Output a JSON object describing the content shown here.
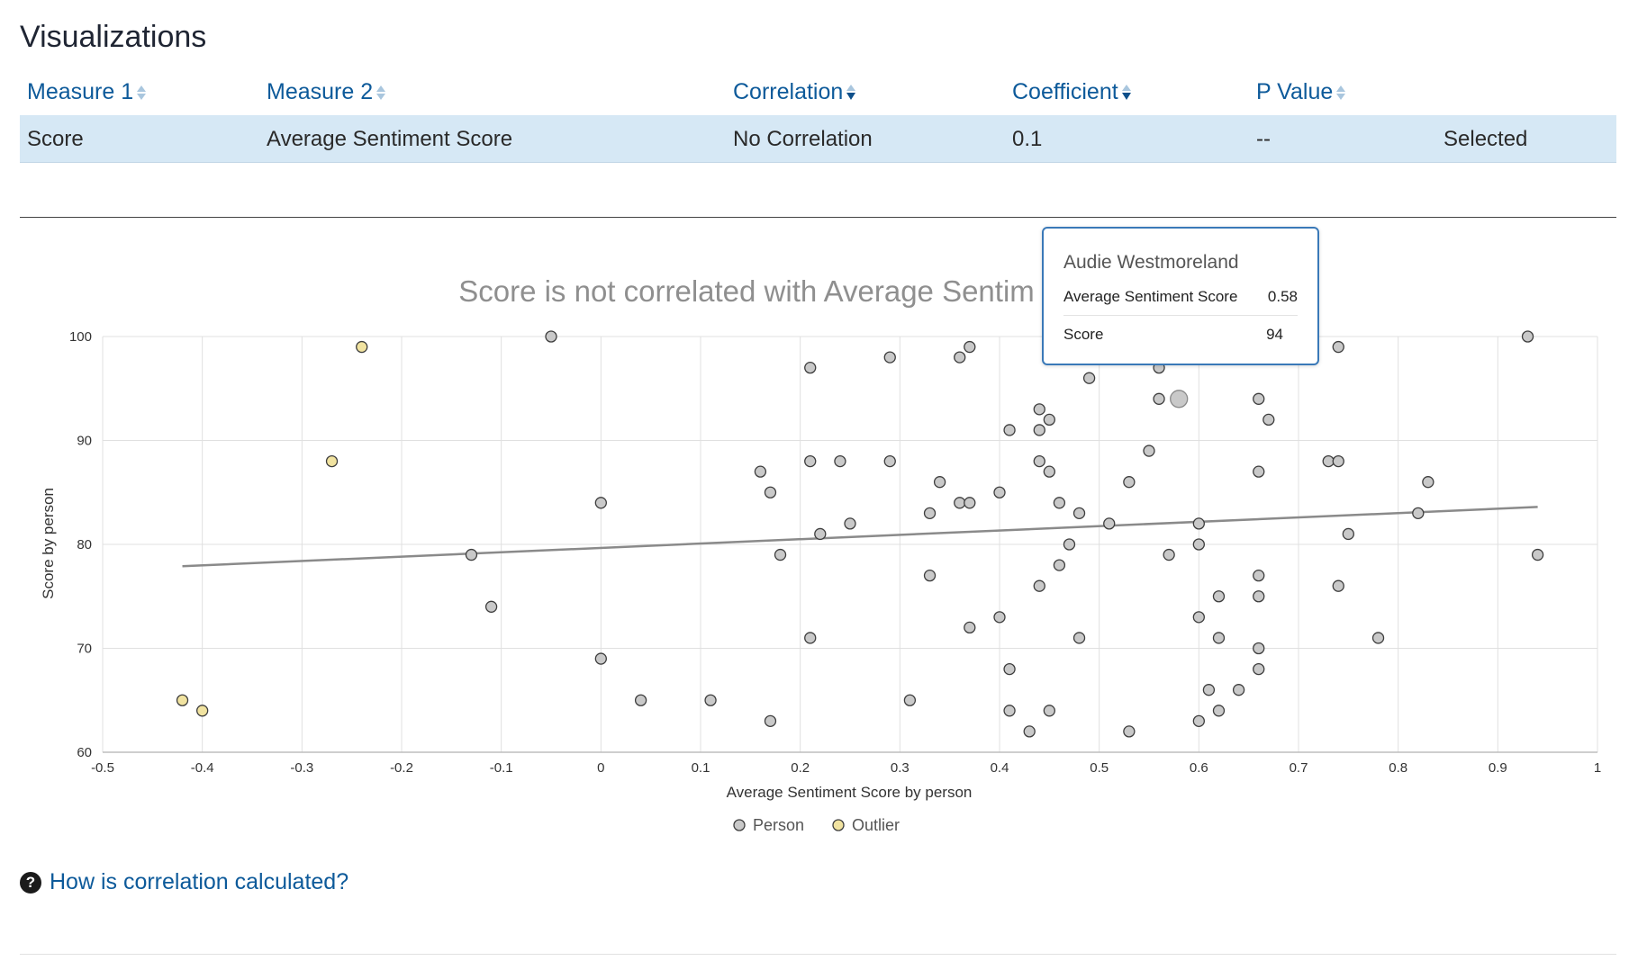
{
  "page_title": "Visualizations",
  "table": {
    "headers": [
      {
        "label": "Measure 1",
        "sort": "none"
      },
      {
        "label": "Measure 2",
        "sort": "none"
      },
      {
        "label": "Correlation",
        "sort": "desc"
      },
      {
        "label": "Coefficient",
        "sort": "desc"
      },
      {
        "label": "P Value",
        "sort": "none"
      }
    ],
    "row": {
      "measure1": "Score",
      "measure2": "Average Sentiment Score",
      "correlation": "No Correlation",
      "coefficient": "0.1",
      "pvalue": "--",
      "status": "Selected"
    }
  },
  "tooltip": {
    "name": "Audie Westmoreland",
    "metric1_label": "Average Sentiment Score",
    "metric1_value": "0.58",
    "metric2_label": "Score",
    "metric2_value": "94"
  },
  "help_link": "How is correlation calculated?",
  "chart_data": {
    "type": "scatter",
    "title": "Score is not correlated with Average Sentim",
    "xlabel": "Average Sentiment Score by person",
    "ylabel": "Score by person",
    "xlim": [
      -0.5,
      1
    ],
    "ylim": [
      60,
      100
    ],
    "xticks": [
      -0.5,
      -0.4,
      -0.3,
      -0.2,
      -0.1,
      0,
      0.1,
      0.2,
      0.3,
      0.4,
      0.5,
      0.6,
      0.7,
      0.8,
      0.9,
      1
    ],
    "yticks": [
      60,
      70,
      80,
      90,
      100
    ],
    "grid": true,
    "legend_position": "bottom",
    "colors": {
      "person_fill": "#c9c9c9",
      "outlier_fill": "#f1e3a0",
      "marker_stroke": "#3d3d3d",
      "trendline": "#8a8a8a",
      "grid": "#e0e0e0",
      "axis": "#bdbdbd"
    },
    "series": [
      {
        "name": "Person",
        "points": [
          [
            -0.13,
            79
          ],
          [
            -0.11,
            74
          ],
          [
            -0.05,
            100
          ],
          [
            0,
            84
          ],
          [
            0,
            69
          ],
          [
            0.04,
            65
          ],
          [
            0.11,
            65
          ],
          [
            0.16,
            87
          ],
          [
            0.17,
            85
          ],
          [
            0.17,
            63
          ],
          [
            0.18,
            79
          ],
          [
            0.21,
            97
          ],
          [
            0.21,
            88
          ],
          [
            0.21,
            71
          ],
          [
            0.22,
            81
          ],
          [
            0.24,
            88
          ],
          [
            0.25,
            82
          ],
          [
            0.29,
            98
          ],
          [
            0.29,
            88
          ],
          [
            0.31,
            65
          ],
          [
            0.33,
            83
          ],
          [
            0.33,
            77
          ],
          [
            0.34,
            86
          ],
          [
            0.36,
            98
          ],
          [
            0.36,
            84
          ],
          [
            0.37,
            99
          ],
          [
            0.37,
            84
          ],
          [
            0.37,
            72
          ],
          [
            0.4,
            85
          ],
          [
            0.4,
            73
          ],
          [
            0.41,
            91
          ],
          [
            0.41,
            68
          ],
          [
            0.41,
            64
          ],
          [
            0.43,
            62
          ],
          [
            0.44,
            93
          ],
          [
            0.44,
            91
          ],
          [
            0.44,
            88
          ],
          [
            0.44,
            76
          ],
          [
            0.45,
            92
          ],
          [
            0.45,
            87
          ],
          [
            0.45,
            64
          ],
          [
            0.46,
            84
          ],
          [
            0.46,
            78
          ],
          [
            0.47,
            80
          ],
          [
            0.48,
            83
          ],
          [
            0.48,
            71
          ],
          [
            0.49,
            96
          ],
          [
            0.51,
            82
          ],
          [
            0.53,
            86
          ],
          [
            0.53,
            62
          ],
          [
            0.55,
            89
          ],
          [
            0.56,
            97
          ],
          [
            0.56,
            94
          ],
          [
            0.57,
            79
          ],
          [
            0.6,
            82
          ],
          [
            0.6,
            80
          ],
          [
            0.6,
            73
          ],
          [
            0.6,
            63
          ],
          [
            0.61,
            66
          ],
          [
            0.62,
            75
          ],
          [
            0.62,
            71
          ],
          [
            0.62,
            64
          ],
          [
            0.64,
            66
          ],
          [
            0.66,
            94
          ],
          [
            0.66,
            87
          ],
          [
            0.66,
            77
          ],
          [
            0.66,
            75
          ],
          [
            0.66,
            70
          ],
          [
            0.66,
            68
          ],
          [
            0.67,
            92
          ],
          [
            0.73,
            88
          ],
          [
            0.74,
            99
          ],
          [
            0.74,
            88
          ],
          [
            0.74,
            76
          ],
          [
            0.75,
            81
          ],
          [
            0.78,
            71
          ],
          [
            0.82,
            83
          ],
          [
            0.83,
            86
          ],
          [
            0.93,
            100
          ],
          [
            0.94,
            79
          ]
        ]
      },
      {
        "name": "Outlier",
        "points": [
          [
            -0.42,
            65
          ],
          [
            -0.4,
            64
          ],
          [
            -0.27,
            88
          ],
          [
            -0.24,
            99
          ]
        ]
      }
    ],
    "highlighted_point": [
      0.58,
      94
    ],
    "trendline": {
      "x1": -0.42,
      "y1": 77.9,
      "x2": 0.94,
      "y2": 83.6
    }
  }
}
